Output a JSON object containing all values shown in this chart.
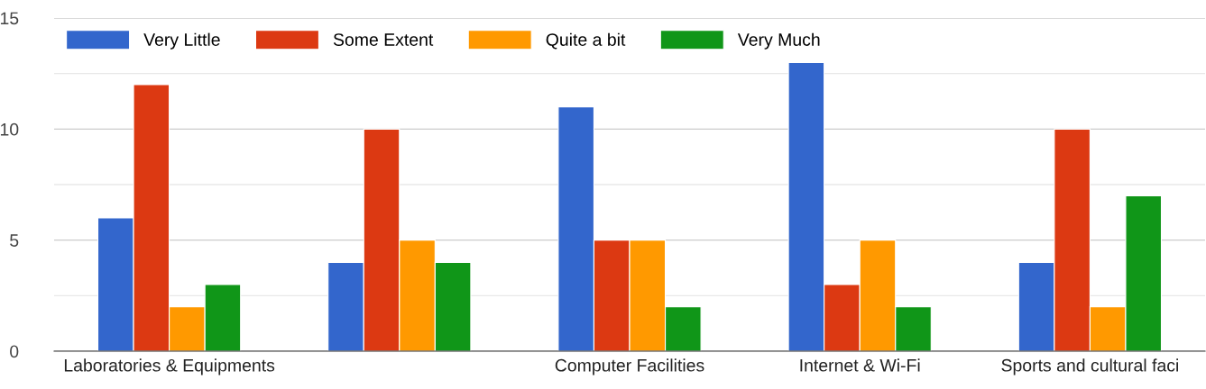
{
  "chart_data": {
    "type": "bar",
    "categories": [
      "Laboratories & Equipments",
      null,
      "Computer Facilities",
      "Internet & Wi-Fi",
      "Sports and cultural faci"
    ],
    "series": [
      {
        "name": "Very Little",
        "color": "#3366cc",
        "values": [
          6,
          4,
          11,
          13,
          4
        ]
      },
      {
        "name": "Some Extent",
        "color": "#dc3912",
        "values": [
          12,
          10,
          5,
          3,
          10
        ]
      },
      {
        "name": "Quite a bit",
        "color": "#ff9900",
        "values": [
          2,
          5,
          5,
          5,
          2
        ]
      },
      {
        "name": "Very Much",
        "color": "#109618",
        "values": [
          3,
          4,
          2,
          2,
          7
        ]
      }
    ],
    "ylim": [
      0,
      15
    ],
    "yticks": [
      0,
      {
        "value": 2.5,
        "label": null
      },
      5,
      {
        "value": 7.5,
        "label": null
      },
      10,
      {
        "value": 12.5,
        "label": null
      },
      15
    ],
    "grid": "y",
    "legend": "top left"
  }
}
